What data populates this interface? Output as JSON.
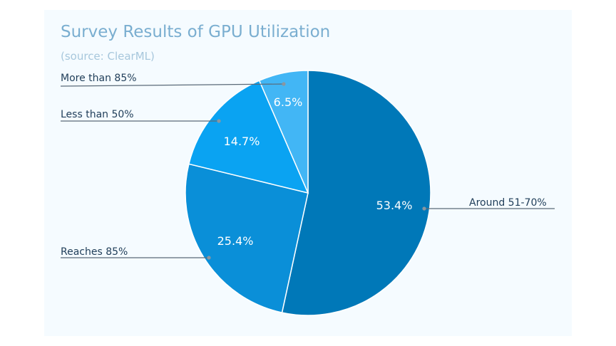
{
  "colors": {
    "background": "#ffffff",
    "panel": "#f5fbff",
    "title": "#7aaed0",
    "subtitle": "#a7c7dc",
    "slice_separator": "#ffffff"
  },
  "chart_data": {
    "type": "pie",
    "title": "Survey Results of GPU Utilization",
    "subtitle": "(source: ClearML)",
    "slices": [
      {
        "label": "Around 51-70%",
        "value": 53.4,
        "display": "53.4%",
        "color": "#0078b8"
      },
      {
        "label": "Reaches 85%",
        "value": 25.4,
        "display": "25.4%",
        "color": "#0a8fd8"
      },
      {
        "label": "Less than 50%",
        "value": 14.7,
        "display": "14.7%",
        "color": "#0aa3f2"
      },
      {
        "label": "More than 85%",
        "value": 6.5,
        "display": "6.5%",
        "color": "#42b6f5"
      }
    ],
    "start_position": "12 o'clock",
    "direction": "clockwise",
    "legend": "outside labels with leader lines"
  }
}
